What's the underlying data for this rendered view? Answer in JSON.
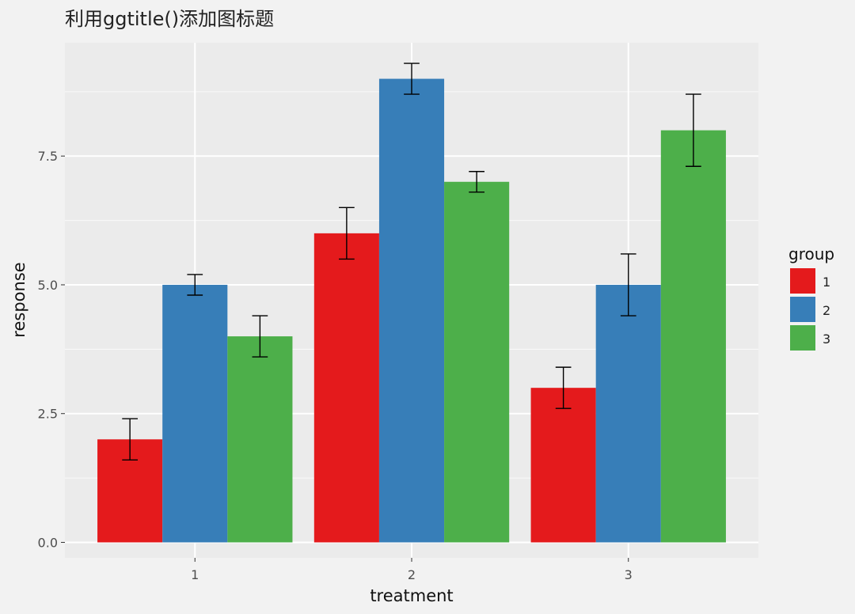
{
  "chart_data": {
    "type": "bar",
    "title": "利用ggtitle()添加图标题",
    "xlabel": "treatment",
    "ylabel": "response",
    "categories": [
      "1",
      "2",
      "3"
    ],
    "ylim": [
      -0.3,
      9.7
    ],
    "yticks": [
      0,
      2.5,
      5,
      7.5
    ],
    "ytick_labels": [
      "0.0",
      "2.5",
      "5.0",
      "7.5"
    ],
    "grid": true,
    "legend": {
      "title": "group",
      "position": "right"
    },
    "series": [
      {
        "name": "1",
        "color": "#e41a1c",
        "values": [
          2,
          6,
          3
        ],
        "error": [
          0.4,
          0.5,
          0.4
        ]
      },
      {
        "name": "2",
        "color": "#377eb8",
        "values": [
          5,
          9,
          5
        ],
        "error": [
          0.2,
          0.3,
          0.6
        ]
      },
      {
        "name": "3",
        "color": "#4daf4a",
        "values": [
          4,
          7,
          8
        ],
        "error": [
          0.4,
          0.2,
          0.7
        ]
      }
    ],
    "error_bar_color": "#000000"
  }
}
